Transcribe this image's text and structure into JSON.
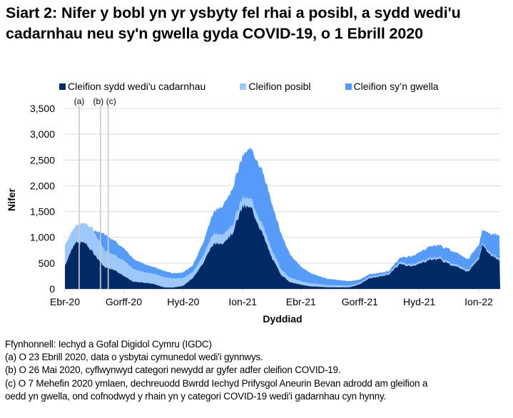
{
  "title": "Siart 2: Nifer y bobl yn yr ysbyty fel rhai a posibl, a sydd wedi'u cadarnhau neu sy'n gwella gyda COVID-19, o 1 Ebrill 2020",
  "legend": [
    {
      "label": "Cleifion sydd wedi'u cadarnhau",
      "color": "#002a66"
    },
    {
      "label": "Cleifion posibl",
      "color": "#9cc8fb"
    },
    {
      "label": "Cleifion sy’n gwella",
      "color": "#559bf7"
    }
  ],
  "annotations": [
    {
      "label": "(a)",
      "date": "2020-04-23"
    },
    {
      "label": "(b)",
      "date": "2020-05-26"
    },
    {
      "label": "(c)",
      "date": "2020-06-07"
    }
  ],
  "footnotes": [
    "Ffynhonnell: Iechyd a Gofal Digidol Cymru (IGDC)",
    "(a) O 23 Ebrill 2020, data o ysbytai cymunedol wedi'i gynnwys.",
    "(b) O 26 Mai 2020, cyflwynwyd categori newydd ar gyfer adfer cleifion COVID-19.",
    "(c) O 7 Mehefin 2020 ymlaen, dechreuodd Bwrdd Iechyd Prifysgol Aneurin Bevan adrodd am gleifion a",
    "oedd yn gwella, ond cofnodwyd y rhain yn y categori COVID-19 wedi'i gadarnhau cyn hynny."
  ],
  "chart_data": {
    "type": "area",
    "stacked": true,
    "title": "Siart 2: Nifer y bobl yn yr ysbyty fel rhai a posibl, a sydd wedi'u cadarnhau neu sy'n gwella gyda COVID-19, o 1 Ebrill 2020",
    "xlabel": "Dyddiad",
    "ylabel": "Nifer",
    "ylim": [
      0,
      3500
    ],
    "yticks": [
      0,
      500,
      1000,
      1500,
      2000,
      2500,
      3000,
      3500
    ],
    "ytick_labels": [
      "0",
      "500",
      "1,000",
      "1,500",
      "2,000",
      "2,500",
      "3,000",
      "3,500"
    ],
    "xtick_labels": [
      "Ebr-20",
      "Gorff-20",
      "Hyd-20",
      "Ion-21",
      "Ebr-21",
      "Gorff-21",
      "Hyd-21",
      "Ion-22"
    ],
    "grid": "horizontal",
    "legend_position": "top",
    "x": [
      "2020-04-01",
      "2020-04-15",
      "2020-05-01",
      "2020-05-15",
      "2020-06-01",
      "2020-06-15",
      "2020-07-01",
      "2020-07-15",
      "2020-08-01",
      "2020-08-15",
      "2020-09-01",
      "2020-09-15",
      "2020-10-01",
      "2020-10-15",
      "2020-11-01",
      "2020-11-15",
      "2020-12-01",
      "2020-12-15",
      "2021-01-01",
      "2021-01-15",
      "2021-02-01",
      "2021-02-15",
      "2021-03-01",
      "2021-03-15",
      "2021-04-01",
      "2021-04-15",
      "2021-05-01",
      "2021-05-15",
      "2021-06-01",
      "2021-06-15",
      "2021-07-01",
      "2021-07-15",
      "2021-08-01",
      "2021-08-15",
      "2021-09-01",
      "2021-09-15",
      "2021-10-01",
      "2021-10-15",
      "2021-11-01",
      "2021-11-15",
      "2021-12-01",
      "2021-12-15",
      "2022-01-01",
      "2022-01-07",
      "2022-01-15",
      "2022-02-01",
      "2022-02-20"
    ],
    "series": [
      {
        "name": "Cleifion sydd wedi'u cadarnhau",
        "values": [
          450,
          880,
          900,
          700,
          420,
          380,
          250,
          140,
          120,
          100,
          30,
          25,
          60,
          200,
          500,
          850,
          900,
          1050,
          1600,
          1550,
          1050,
          600,
          280,
          130,
          80,
          50,
          40,
          30,
          30,
          30,
          90,
          200,
          240,
          280,
          480,
          440,
          480,
          560,
          580,
          480,
          420,
          330,
          560,
          870,
          700,
          560,
          580
        ]
      },
      {
        "name": "Cleifion posibl",
        "values": [
          400,
          320,
          380,
          450,
          330,
          300,
          300,
          250,
          210,
          200,
          200,
          180,
          150,
          120,
          150,
          200,
          180,
          170,
          180,
          170,
          180,
          150,
          110,
          90,
          70,
          60,
          50,
          40,
          40,
          30,
          30,
          30,
          30,
          30,
          40,
          40,
          40,
          40,
          40,
          40,
          40,
          40,
          40,
          40,
          40,
          40,
          40
        ]
      },
      {
        "name": "Cleifion sy’n gwella",
        "values": [
          0,
          0,
          0,
          0,
          320,
          280,
          230,
          200,
          160,
          130,
          120,
          100,
          110,
          130,
          250,
          400,
          550,
          700,
          800,
          1000,
          1050,
          900,
          700,
          450,
          280,
          200,
          150,
          120,
          100,
          90,
          60,
          50,
          40,
          40,
          80,
          150,
          180,
          220,
          230,
          250,
          230,
          200,
          250,
          250,
          350,
          450,
          480
        ]
      }
    ]
  }
}
